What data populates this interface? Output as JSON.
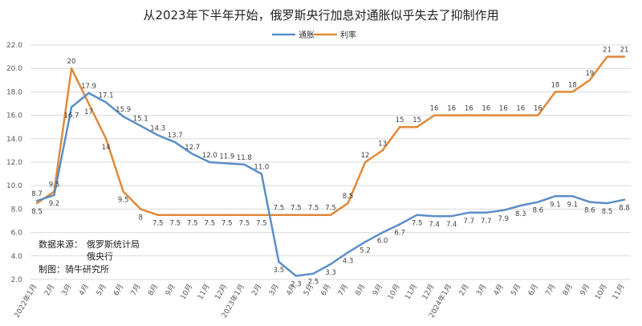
{
  "chart_data": {
    "type": "line",
    "title": "从2023年下半年开始，俄罗斯央行加息对通胀似乎失去了抑制作用",
    "categories": [
      "2022年1月",
      "2月",
      "3月",
      "4月",
      "5月",
      "6月",
      "7月",
      "8月",
      "9月",
      "10月",
      "11月",
      "12月",
      "2023年1月",
      "2月",
      "3月",
      "4月",
      "5月",
      "6月",
      "7月",
      "8月",
      "9月",
      "10月",
      "11月",
      "12月",
      "2024年1月",
      "2月",
      "3月",
      "4月",
      "5月",
      "6月",
      "7月",
      "8月",
      "9月",
      "10月",
      "11月"
    ],
    "series": [
      {
        "name": "通胀",
        "color": "#5b8fc7",
        "values": [
          8.7,
          9.2,
          16.7,
          17.9,
          17.1,
          15.9,
          15.1,
          14.3,
          13.7,
          12.7,
          12.0,
          11.9,
          11.8,
          11.0,
          3.5,
          2.3,
          2.5,
          3.3,
          4.3,
          5.2,
          6.0,
          6.7,
          7.5,
          7.4,
          7.4,
          7.7,
          7.7,
          7.9,
          8.3,
          8.6,
          9.1,
          9.1,
          8.6,
          8.5,
          8.8
        ],
        "labels": [
          "8.7",
          "9.2",
          "16.7",
          "17.9",
          "17.1",
          "15.9",
          "15.1",
          "14.3",
          "13.7",
          "12.7",
          "12.0",
          "11.9",
          "11.8",
          "11.0",
          "3.5",
          "2.3",
          "2.5",
          "3.3",
          "4.3",
          "5.2",
          "6.0",
          "6.7",
          "7.5",
          "7.4",
          "7.4",
          "7.7",
          "7.7",
          "7.9",
          "8.3",
          "8.6",
          "9.1",
          "9.1",
          "8.6",
          "8.5",
          "8.8"
        ]
      },
      {
        "name": "利率",
        "color": "#e0893a",
        "values": [
          8.5,
          9.5,
          20,
          17,
          14,
          9.5,
          8,
          7.5,
          7.5,
          7.5,
          7.5,
          7.5,
          7.5,
          7.5,
          7.5,
          7.5,
          7.5,
          7.5,
          8.5,
          12,
          13,
          15,
          15,
          16,
          16,
          16,
          16,
          16,
          16,
          16,
          18,
          18,
          19,
          21,
          21
        ],
        "labels": [
          "8.5",
          "9.5",
          "20",
          "17",
          "14",
          "9.5",
          "8",
          "7.5",
          "7.5",
          "7.5",
          "7.5",
          "7.5",
          "7.5",
          "7.5",
          "7.5",
          "7.5",
          "7.5",
          "7.5",
          "8.5",
          "12",
          "13",
          "15",
          "15",
          "16",
          "16",
          "16",
          "16",
          "16",
          "16",
          "16",
          "18",
          "18",
          "19",
          "21",
          "21"
        ]
      }
    ],
    "yticks": [
      "2.0",
      "4.0",
      "6.0",
      "8.0",
      "10.0",
      "12.0",
      "14.0",
      "16.0",
      "18.0",
      "20.0",
      "22.0"
    ],
    "ylim": [
      2,
      22
    ],
    "grid": true,
    "legend_position": "top-center",
    "xlabel": "",
    "ylabel": "",
    "annotation": {
      "source_label": "数据来源：",
      "source_1": "俄罗斯统计局",
      "source_2": "俄央行",
      "credit": "制图：骑牛研究所"
    }
  }
}
